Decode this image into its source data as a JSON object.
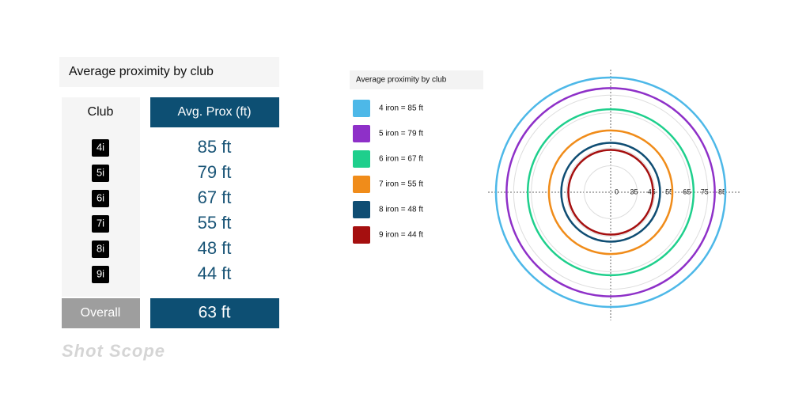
{
  "panel": {
    "title": "Average proximity by club",
    "table": {
      "header": [
        "Club",
        "Avg. Prox (ft)"
      ],
      "rows": [
        [
          "4i",
          "85 ft"
        ],
        [
          "5i",
          "79 ft"
        ],
        [
          "6i",
          "67 ft"
        ],
        [
          "7i",
          "55 ft"
        ],
        [
          "8i",
          "48 ft"
        ],
        [
          "9i",
          "44 ft"
        ]
      ],
      "footer": [
        "Overall",
        "63 ft"
      ]
    },
    "logo": "Shot Scope"
  },
  "chart_data": {
    "type": "radial",
    "title": "Average proximity by club",
    "series": [
      {
        "name": "4 iron = 85 ft",
        "color": "#4db8e8",
        "value": 85
      },
      {
        "name": "5 iron = 79 ft",
        "color": "#8e30c8",
        "value": 79
      },
      {
        "name": "6 iron = 67 ft",
        "color": "#1ecf8c",
        "value": 67
      },
      {
        "name": "7 iron = 55 ft",
        "color": "#f08c1a",
        "value": 55
      },
      {
        "name": "8 iron = 48 ft",
        "color": "#0f4d73",
        "value": 48
      },
      {
        "name": "9 iron = 44 ft",
        "color": "#a50f0f",
        "value": 44
      }
    ],
    "rlim": [
      20,
      85
    ],
    "rticks": [
      35,
      45,
      55,
      65,
      75,
      85
    ],
    "center_label": "0",
    "grid": true
  }
}
